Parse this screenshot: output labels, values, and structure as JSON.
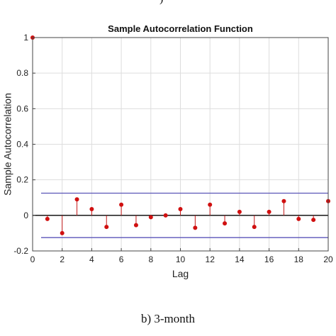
{
  "top_fragment": ")",
  "caption": "b) 3-month",
  "chart_data": {
    "type": "stem",
    "title": "Sample Autocorrelation Function",
    "xlabel": "Lag",
    "ylabel": "Sample Autocorrelation",
    "xlim": [
      0,
      20
    ],
    "ylim": [
      -0.2,
      1
    ],
    "xticks": [
      0,
      2,
      4,
      6,
      8,
      10,
      12,
      14,
      16,
      18,
      20
    ],
    "yticks": [
      -0.2,
      0,
      0.2,
      0.4,
      0.6,
      0.8,
      1
    ],
    "grid": true,
    "x": [
      0,
      1,
      2,
      3,
      4,
      5,
      6,
      7,
      8,
      9,
      10,
      11,
      12,
      13,
      14,
      15,
      16,
      17,
      18,
      19,
      20
    ],
    "values": [
      1.0,
      -0.02,
      -0.1,
      0.09,
      0.035,
      -0.065,
      0.06,
      -0.055,
      -0.01,
      0.0,
      0.035,
      -0.07,
      0.06,
      -0.045,
      0.02,
      -0.065,
      0.02,
      0.08,
      -0.02,
      -0.025,
      0.08
    ],
    "confidence_bounds": [
      0.125,
      -0.125
    ],
    "colors": {
      "stem": "#c41a1a",
      "marker": "#d01010",
      "bounds": "#5b55b8",
      "zero_line": "#000000",
      "grid": "#dddddd"
    }
  }
}
